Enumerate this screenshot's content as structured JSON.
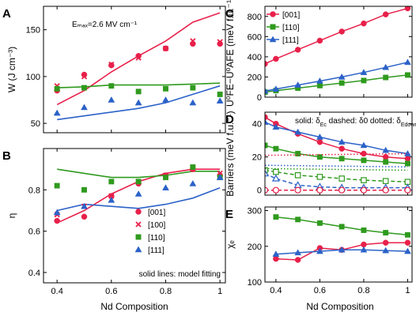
{
  "colors": {
    "c001": "#e8204a",
    "c100": "#e8204a",
    "c110": "#2f9a1e",
    "c111": "#2b62c8"
  },
  "shared_xlabel": "Nd Composition",
  "chart_data": [
    {
      "id": "A",
      "type": "scatter",
      "letter": "A",
      "xlim": [
        0.35,
        1.02
      ],
      "ylim": [
        40,
        175
      ],
      "xticks": [
        0.4,
        0.6,
        0.8,
        1.0
      ],
      "xticklabels": [
        "0.4",
        "0.6",
        "0.8",
        "1"
      ],
      "show_xticklabels": false,
      "yticks": [
        50,
        100,
        150
      ],
      "yticklabels": [
        "50",
        "100",
        "150"
      ],
      "ylabel": "W (J cm⁻³)",
      "annotation": "Eₘₐₓ=2.6 MV cm⁻¹",
      "series": [
        {
          "name": "[001]",
          "marker": "circle",
          "color": "#e8204a",
          "x": [
            0.4,
            0.5,
            0.6,
            0.7,
            0.8,
            0.9,
            1.0
          ],
          "y": [
            85,
            102,
            112,
            122,
            130,
            135,
            135
          ]
        },
        {
          "name": "[100]",
          "marker": "cross",
          "color": "#e8204a",
          "x": [
            0.4,
            0.5,
            0.6,
            0.7,
            0.8,
            0.9,
            1.0
          ],
          "y": [
            90,
            100,
            113,
            120,
            130,
            138,
            137
          ]
        },
        {
          "name": "[110]",
          "marker": "square",
          "color": "#2f9a1e",
          "x": [
            0.4,
            0.5,
            0.6,
            0.7,
            0.8,
            0.9,
            1.0
          ],
          "y": [
            87,
            88,
            90,
            84,
            87,
            88,
            81
          ]
        },
        {
          "name": "[111]",
          "marker": "triangle",
          "color": "#2b62c8",
          "x": [
            0.4,
            0.5,
            0.6,
            0.7,
            0.8,
            0.9,
            1.0
          ],
          "y": [
            61,
            67,
            75,
            72,
            75,
            72,
            74
          ]
        }
      ],
      "fits": [
        {
          "color": "#e8204a",
          "x": [
            0.4,
            0.5,
            0.6,
            0.7,
            0.8,
            0.9,
            1.0
          ],
          "y": [
            70,
            85,
            105,
            122,
            138,
            158,
            168
          ]
        },
        {
          "color": "#2f9a1e",
          "x": [
            0.4,
            0.5,
            0.6,
            0.7,
            0.8,
            0.9,
            1.0
          ],
          "y": [
            88,
            89,
            91,
            91,
            91,
            92,
            93
          ]
        },
        {
          "color": "#2b62c8",
          "x": [
            0.4,
            0.5,
            0.6,
            0.7,
            0.8,
            0.9,
            1.0
          ],
          "y": [
            54,
            58,
            62,
            66,
            72,
            81,
            90
          ]
        }
      ]
    },
    {
      "id": "B",
      "type": "scatter",
      "letter": "B",
      "xlim": [
        0.35,
        1.02
      ],
      "ylim": [
        0.35,
        1.0
      ],
      "xticks": [
        0.4,
        0.6,
        0.8,
        1.0
      ],
      "xticklabels": [
        "0.4",
        "0.6",
        "0.8",
        "1"
      ],
      "show_xticklabels": true,
      "yticks": [
        0.4,
        0.6,
        0.8
      ],
      "yticklabels": [
        "0.4",
        "0.6",
        "0.8"
      ],
      "ylabel": "η",
      "legend_position": "bottom-right",
      "legend_note": "solid lines: model fitting",
      "series": [
        {
          "name": "[001]",
          "marker": "circle",
          "color": "#e8204a",
          "x": [
            0.4,
            0.5,
            0.6,
            0.7,
            0.8,
            0.9,
            1.0
          ],
          "y": [
            0.65,
            0.67,
            0.77,
            0.83,
            0.87,
            0.9,
            0.87
          ]
        },
        {
          "name": "[100]",
          "marker": "cross",
          "color": "#e8204a",
          "x": [
            0.4,
            0.5,
            0.6,
            0.7,
            0.8,
            0.9,
            1.0
          ],
          "y": [
            0.68,
            0.72,
            0.77,
            0.84,
            0.87,
            0.9,
            0.88
          ]
        },
        {
          "name": "[110]",
          "marker": "square",
          "color": "#2f9a1e",
          "x": [
            0.4,
            0.5,
            0.6,
            0.7,
            0.8,
            0.9,
            1.0
          ],
          "y": [
            0.82,
            0.8,
            0.84,
            0.84,
            0.86,
            0.91,
            0.86
          ]
        },
        {
          "name": "[111]",
          "marker": "triangle",
          "color": "#2b62c8",
          "x": [
            0.4,
            0.5,
            0.6,
            0.7,
            0.8,
            0.9,
            1.0
          ],
          "y": [
            0.69,
            0.72,
            0.75,
            0.78,
            0.81,
            0.83,
            0.86
          ]
        }
      ],
      "fits": [
        {
          "color": "#e8204a",
          "x": [
            0.4,
            0.5,
            0.6,
            0.7,
            0.8,
            0.9,
            1.0
          ],
          "y": [
            0.64,
            0.7,
            0.78,
            0.84,
            0.88,
            0.9,
            0.9
          ]
        },
        {
          "color": "#2f9a1e",
          "x": [
            0.4,
            0.5,
            0.6,
            0.7,
            0.8,
            0.9,
            1.0
          ],
          "y": [
            0.9,
            0.88,
            0.86,
            0.86,
            0.87,
            0.89,
            0.89
          ]
        },
        {
          "color": "#2b62c8",
          "x": [
            0.4,
            0.5,
            0.6,
            0.7,
            0.8,
            0.9,
            1.0
          ],
          "y": [
            0.7,
            0.73,
            0.72,
            0.71,
            0.73,
            0.76,
            0.81
          ]
        }
      ]
    },
    {
      "id": "C",
      "type": "line",
      "letter": "C",
      "xlim": [
        0.35,
        1.02
      ],
      "ylim": [
        0,
        900
      ],
      "xticks": [
        0.4,
        0.6,
        0.8,
        1.0
      ],
      "xticklabels": [
        "0.4",
        "0.6",
        "0.8",
        "1"
      ],
      "show_xticklabels": false,
      "yticks": [
        0,
        200,
        400,
        600,
        800
      ],
      "yticklabels": [
        "0",
        "200",
        "400",
        "600",
        "800"
      ],
      "ylabel": "U⁰FE−U⁰AFE (meV f.u.⁻¹)",
      "legend_position": "top-left",
      "series": [
        {
          "name": "[001]",
          "marker": "circle",
          "color": "#e8204a",
          "x": [
            0.35,
            0.4,
            0.5,
            0.6,
            0.7,
            0.8,
            0.9,
            1.0
          ],
          "y": [
            330,
            380,
            470,
            560,
            650,
            730,
            820,
            880
          ]
        },
        {
          "name": "[110]",
          "marker": "square",
          "color": "#2f9a1e",
          "x": [
            0.35,
            0.4,
            0.5,
            0.6,
            0.7,
            0.8,
            0.9,
            1.0
          ],
          "y": [
            50,
            65,
            90,
            115,
            140,
            165,
            195,
            220
          ]
        },
        {
          "name": "[111]",
          "marker": "triangle",
          "color": "#2b62c8",
          "x": [
            0.35,
            0.4,
            0.5,
            0.6,
            0.7,
            0.8,
            0.9,
            1.0
          ],
          "y": [
            60,
            80,
            120,
            160,
            200,
            245,
            295,
            345
          ]
        }
      ]
    },
    {
      "id": "D",
      "type": "line",
      "letter": "D",
      "xlim": [
        0.35,
        1.02
      ],
      "ylim": [
        -3,
        47
      ],
      "xticks": [
        0.4,
        0.6,
        0.8,
        1.0
      ],
      "xticklabels": [
        "0.4",
        "0.6",
        "0.8",
        "1"
      ],
      "show_xticklabels": false,
      "yticks": [
        0,
        20,
        40
      ],
      "yticklabels": [
        "0",
        "20",
        "40"
      ],
      "ylabel": "Barriers (meV f.u.⁻¹)",
      "legend_parts": [
        "solid: δ",
        "Ec",
        "dashed: δ",
        "0",
        "dotted: δ",
        "Edown"
      ],
      "series": [
        {
          "color": "#e8204a",
          "style": "solid",
          "marker": "circle",
          "open": false,
          "x": [
            0.35,
            0.4,
            0.5,
            0.6,
            0.7,
            0.8,
            0.9,
            1.0
          ],
          "y": [
            44,
            40,
            34,
            29,
            25,
            22,
            20,
            19
          ]
        },
        {
          "color": "#2b62c8",
          "style": "solid",
          "marker": "triangle",
          "open": false,
          "x": [
            0.35,
            0.4,
            0.5,
            0.6,
            0.7,
            0.8,
            0.9,
            1.0
          ],
          "y": [
            41,
            38,
            35,
            32,
            29,
            27,
            24,
            22
          ]
        },
        {
          "color": "#2f9a1e",
          "style": "solid",
          "marker": "square",
          "open": false,
          "x": [
            0.35,
            0.4,
            0.5,
            0.6,
            0.7,
            0.8,
            0.9,
            1.0
          ],
          "y": [
            27,
            25,
            22,
            20,
            19,
            18,
            17,
            16
          ]
        },
        {
          "color": "#2f9a1e",
          "style": "dashed",
          "marker": "square",
          "open": true,
          "x": [
            0.35,
            0.4,
            0.5,
            0.6,
            0.7,
            0.8,
            0.9,
            1.0
          ],
          "y": [
            12,
            11,
            9,
            8,
            7,
            6,
            5.5,
            5
          ]
        },
        {
          "color": "#2b62c8",
          "style": "dashed",
          "marker": "triangle",
          "open": true,
          "x": [
            0.35,
            0.4,
            0.5,
            0.6,
            0.7,
            0.8,
            0.9,
            1.0
          ],
          "y": [
            10,
            7,
            3,
            2,
            1.5,
            1.5,
            1.5,
            1.5
          ]
        },
        {
          "color": "#e8204a",
          "style": "dashed",
          "marker": "circle",
          "open": true,
          "x": [
            0.35,
            0.4,
            0.5,
            0.6,
            0.7,
            0.8,
            0.9,
            1.0
          ],
          "y": [
            0,
            0,
            0,
            0,
            0,
            0,
            0,
            0
          ]
        },
        {
          "color": "#e8204a",
          "style": "dotted",
          "marker": "none",
          "open": false,
          "x": [
            0.35,
            1.0
          ],
          "y": [
            21,
            22
          ]
        },
        {
          "color": "#2b62c8",
          "style": "dotted",
          "marker": "none",
          "open": false,
          "x": [
            0.35,
            1.0
          ],
          "y": [
            15,
            14
          ]
        },
        {
          "color": "#2f9a1e",
          "style": "dotted",
          "marker": "none",
          "open": false,
          "x": [
            0.35,
            1.0
          ],
          "y": [
            13,
            12
          ]
        }
      ]
    },
    {
      "id": "E",
      "type": "line",
      "letter": "E",
      "xlim": [
        0.35,
        1.02
      ],
      "ylim": [
        100,
        310
      ],
      "xticks": [
        0.4,
        0.6,
        0.8,
        1.0
      ],
      "xticklabels": [
        "0.4",
        "0.6",
        "0.8",
        "1"
      ],
      "show_xticklabels": true,
      "yticks": [
        100,
        200,
        300
      ],
      "yticklabels": [
        "100",
        "200",
        "300"
      ],
      "ylabel": "χₑ",
      "series": [
        {
          "name": "[001]",
          "marker": "circle",
          "color": "#e8204a",
          "x": [
            0.4,
            0.5,
            0.6,
            0.7,
            0.8,
            0.9,
            1.0
          ],
          "y": [
            165,
            162,
            195,
            190,
            205,
            210,
            210
          ]
        },
        {
          "name": "[110]",
          "marker": "square",
          "color": "#2f9a1e",
          "x": [
            0.4,
            0.5,
            0.6,
            0.7,
            0.8,
            0.9,
            1.0
          ],
          "y": [
            282,
            275,
            265,
            255,
            245,
            238,
            232
          ]
        },
        {
          "name": "[111]",
          "marker": "triangle",
          "color": "#2b62c8",
          "x": [
            0.4,
            0.5,
            0.6,
            0.7,
            0.8,
            0.9,
            1.0
          ],
          "y": [
            178,
            182,
            186,
            190,
            190,
            188,
            186
          ]
        }
      ]
    }
  ]
}
